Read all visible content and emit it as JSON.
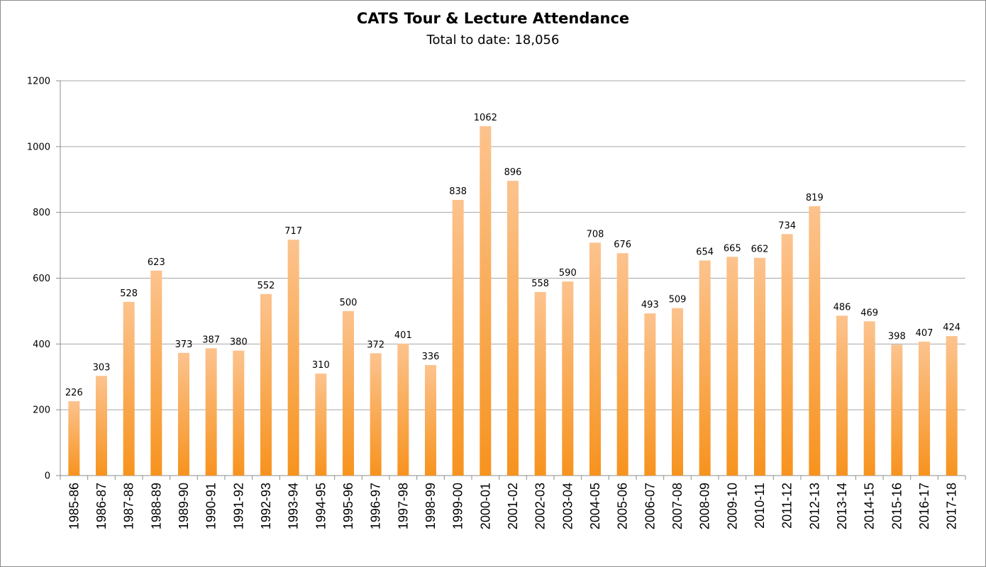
{
  "chart_data": {
    "type": "bar",
    "title": "CATS Tour & Lecture Attendance",
    "subtitle": "Total to date: 18,056",
    "xlabel": "",
    "ylabel": "",
    "ylim": [
      0,
      1200
    ],
    "yticks": [
      0,
      200,
      400,
      600,
      800,
      1000,
      1200
    ],
    "grid": true,
    "categories": [
      "1985-86",
      "1986-87",
      "1987-88",
      "1988-89",
      "1989-90",
      "1990-91",
      "1991-92",
      "1992-93",
      "1993-94",
      "1994-95",
      "1995-96",
      "1996-97",
      "1997-98",
      "1998-99",
      "1999-00",
      "2000-01",
      "2001-02",
      "2002-03",
      "2003-04",
      "2004-05",
      "2005-06",
      "2006-07",
      "2007-08",
      "2008-09",
      "2009-10",
      "2010-11",
      "2011-12",
      "2012-13",
      "2013-14",
      "2014-15",
      "2015-16",
      "2016-17",
      "2017-18"
    ],
    "values": [
      226,
      303,
      528,
      623,
      373,
      387,
      380,
      552,
      717,
      310,
      500,
      372,
      401,
      336,
      838,
      1062,
      896,
      558,
      590,
      708,
      676,
      493,
      509,
      654,
      665,
      662,
      734,
      819,
      486,
      469,
      398,
      407,
      424
    ],
    "bar_color_top": "#fcc38e",
    "bar_color_bottom": "#f7931e"
  }
}
